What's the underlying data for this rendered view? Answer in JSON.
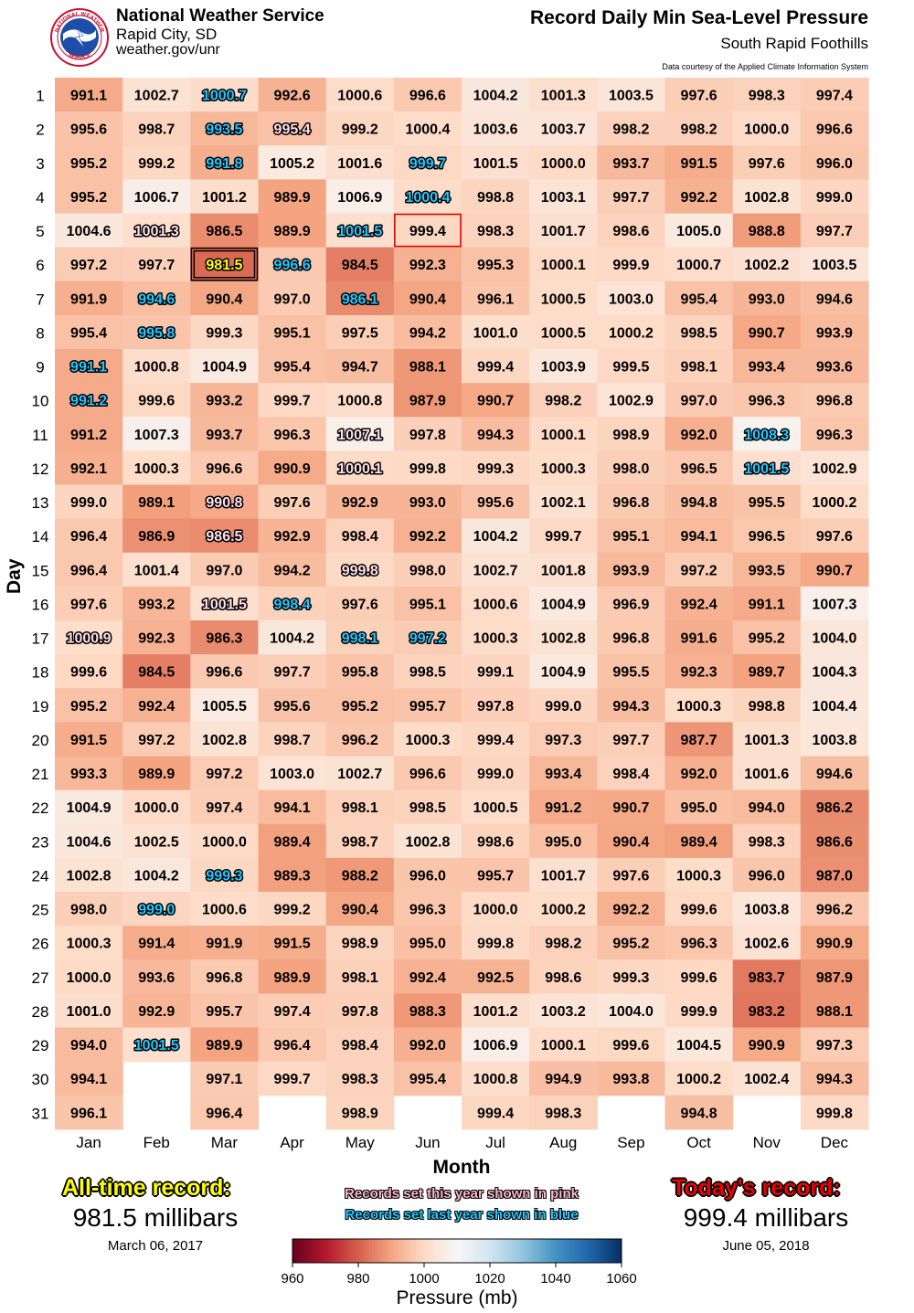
{
  "header": {
    "org_name": "National Weather Service",
    "city": "Rapid City, SD",
    "url": "weather.gov/unr",
    "logo_text_top": "NATIONAL WEATHER",
    "logo_text_bottom": "SERVICE"
  },
  "chart_data": {
    "type": "heatmap",
    "title": "Record Daily Min Sea-Level Pressure",
    "subtitle": "South Rapid Foothills",
    "courtesy": "Data courtesy of the Applied Climate Information System",
    "xlabel": "Month",
    "ylabel": "Day",
    "months": [
      "Jan",
      "Feb",
      "Mar",
      "Apr",
      "May",
      "Jun",
      "Jul",
      "Aug",
      "Sep",
      "Oct",
      "Nov",
      "Dec"
    ],
    "days": [
      "1",
      "2",
      "3",
      "4",
      "5",
      "6",
      "7",
      "8",
      "9",
      "10",
      "11",
      "12",
      "13",
      "14",
      "15",
      "16",
      "17",
      "18",
      "19",
      "20",
      "21",
      "22",
      "23",
      "24",
      "25",
      "26",
      "27",
      "28",
      "29",
      "30",
      "31"
    ],
    "values": [
      [
        991.1,
        995.6,
        995.2,
        995.2,
        1004.6,
        997.2,
        991.9,
        995.4,
        991.1,
        991.2,
        991.2,
        992.1,
        999.0,
        996.4,
        996.4,
        997.6,
        1000.9,
        999.6,
        995.2,
        991.5,
        993.3,
        1004.9,
        1004.6,
        1002.8,
        998.0,
        1000.3,
        1000.0,
        1001.0,
        994.0,
        994.1,
        996.1
      ],
      [
        1002.7,
        998.7,
        999.2,
        1006.7,
        1001.3,
        997.7,
        994.6,
        995.8,
        1000.8,
        999.6,
        1007.3,
        1000.3,
        989.1,
        986.9,
        1001.4,
        993.2,
        992.3,
        984.5,
        992.4,
        997.2,
        989.9,
        1000.0,
        1002.5,
        1004.2,
        999.0,
        991.4,
        993.6,
        992.9,
        1001.5,
        null,
        null
      ],
      [
        1000.7,
        993.5,
        991.8,
        1001.2,
        986.5,
        981.5,
        990.4,
        999.3,
        1004.9,
        993.2,
        993.7,
        996.6,
        990.8,
        986.5,
        997.0,
        1001.5,
        986.3,
        996.6,
        1005.5,
        1002.8,
        997.2,
        997.4,
        1000.0,
        999.3,
        1000.6,
        991.9,
        996.8,
        995.7,
        989.9,
        997.1,
        996.4
      ],
      [
        992.6,
        995.4,
        1005.2,
        989.9,
        989.9,
        996.6,
        997.0,
        995.1,
        995.4,
        999.7,
        996.3,
        990.9,
        997.6,
        992.9,
        994.2,
        998.4,
        1004.2,
        997.7,
        995.6,
        998.7,
        1003.0,
        994.1,
        989.4,
        989.3,
        999.2,
        991.5,
        989.9,
        997.4,
        996.4,
        999.7,
        null
      ],
      [
        1000.6,
        999.2,
        1001.6,
        1006.9,
        1001.5,
        984.5,
        986.1,
        997.5,
        994.7,
        1000.8,
        1007.1,
        1000.1,
        992.9,
        998.4,
        999.8,
        997.6,
        998.1,
        995.8,
        995.2,
        996.2,
        1002.7,
        998.1,
        998.7,
        988.2,
        990.4,
        998.9,
        998.1,
        997.8,
        998.4,
        998.3,
        998.9
      ],
      [
        996.6,
        1000.4,
        999.7,
        1000.4,
        999.4,
        992.3,
        990.4,
        994.2,
        988.1,
        987.9,
        997.8,
        999.8,
        993.0,
        992.2,
        998.0,
        995.1,
        997.2,
        998.5,
        995.7,
        1000.3,
        996.6,
        998.5,
        1002.8,
        996.0,
        996.3,
        995.0,
        992.4,
        988.3,
        992.0,
        995.4,
        null
      ],
      [
        1004.2,
        1003.6,
        1001.5,
        998.8,
        998.3,
        995.3,
        996.1,
        1001.0,
        999.4,
        990.7,
        994.3,
        999.3,
        995.6,
        1004.2,
        1002.7,
        1000.6,
        1000.3,
        999.1,
        997.8,
        999.4,
        999.0,
        1000.5,
        998.6,
        995.7,
        1000.0,
        999.8,
        992.5,
        1001.2,
        1006.9,
        1000.8,
        999.4
      ],
      [
        1001.3,
        1003.7,
        1000.0,
        1003.1,
        1001.7,
        1000.1,
        1000.5,
        1000.5,
        1003.9,
        998.2,
        1000.1,
        1000.3,
        1002.1,
        999.7,
        1001.8,
        1004.9,
        1002.8,
        1004.9,
        999.0,
        997.3,
        993.4,
        991.2,
        995.0,
        1001.7,
        1000.2,
        998.2,
        998.6,
        1003.2,
        1000.1,
        994.9,
        998.3
      ],
      [
        1003.5,
        998.2,
        993.7,
        997.7,
        998.6,
        999.9,
        1003.0,
        1000.2,
        999.5,
        1002.9,
        998.9,
        998.0,
        996.8,
        995.1,
        993.9,
        996.9,
        996.8,
        995.5,
        994.3,
        997.7,
        998.4,
        990.7,
        990.4,
        997.6,
        992.2,
        995.2,
        999.3,
        1004.0,
        999.6,
        993.8,
        null
      ],
      [
        997.6,
        998.2,
        991.5,
        992.2,
        1005.0,
        1000.7,
        995.4,
        998.5,
        998.1,
        997.0,
        992.0,
        996.5,
        994.8,
        994.1,
        997.2,
        992.4,
        991.6,
        992.3,
        1000.3,
        987.7,
        992.0,
        995.0,
        989.4,
        1000.3,
        999.6,
        996.3,
        999.6,
        999.9,
        1004.5,
        1000.2,
        994.8
      ],
      [
        998.3,
        1000.0,
        997.6,
        1002.8,
        988.8,
        1002.2,
        993.0,
        990.7,
        993.4,
        996.3,
        1008.3,
        1001.5,
        995.5,
        996.5,
        993.5,
        991.1,
        995.2,
        989.7,
        998.8,
        1001.3,
        1001.6,
        994.0,
        998.3,
        996.0,
        1003.8,
        1002.6,
        983.7,
        983.2,
        990.9,
        1002.4,
        null
      ],
      [
        997.4,
        996.6,
        996.0,
        999.0,
        997.7,
        1003.5,
        994.6,
        993.9,
        993.6,
        996.8,
        996.3,
        1002.9,
        1000.2,
        997.6,
        990.7,
        1007.3,
        1004.0,
        1004.3,
        1004.4,
        1003.8,
        994.6,
        986.2,
        986.6,
        987.0,
        996.2,
        990.9,
        987.9,
        988.1,
        997.3,
        994.3,
        999.8
      ]
    ],
    "this_year_records": [
      [
        0,
        16
      ],
      [
        1,
        4
      ],
      [
        2,
        12
      ],
      [
        2,
        13
      ],
      [
        2,
        15
      ],
      [
        3,
        1
      ],
      [
        4,
        10
      ],
      [
        4,
        11
      ],
      [
        4,
        14
      ]
    ],
    "last_year_records": [
      [
        0,
        8
      ],
      [
        0,
        9
      ],
      [
        1,
        6
      ],
      [
        1,
        7
      ],
      [
        1,
        24
      ],
      [
        1,
        28
      ],
      [
        2,
        0
      ],
      [
        2,
        1
      ],
      [
        2,
        2
      ],
      [
        2,
        23
      ],
      [
        3,
        5
      ],
      [
        3,
        15
      ],
      [
        4,
        4
      ],
      [
        4,
        6
      ],
      [
        4,
        16
      ],
      [
        5,
        2
      ],
      [
        5,
        3
      ],
      [
        5,
        16
      ],
      [
        10,
        10
      ],
      [
        10,
        11
      ]
    ],
    "all_time_cell": [
      2,
      5
    ],
    "today_cell": [
      5,
      4
    ],
    "colorbar": {
      "min": 960,
      "max": 1060,
      "ticks": [
        "960",
        "980",
        "1000",
        "1020",
        "1040",
        "1060"
      ],
      "label": "Pressure (mb)",
      "colormap": "RdBu"
    }
  },
  "alltime": {
    "label": "All-time record:",
    "value": "981.5 millibars",
    "date": "March 06, 2017"
  },
  "today": {
    "label": "Today's record:",
    "value": "999.4 millibars",
    "date": "June 05, 2018"
  },
  "legend": {
    "pink": "Records set this year shown in pink",
    "blue": "Records set last year shown in blue"
  },
  "colors": {
    "this_year": "#ffb6c8",
    "last_year": "#22c8ff",
    "alltime": "#ffff00",
    "today_box": "#e00000"
  }
}
